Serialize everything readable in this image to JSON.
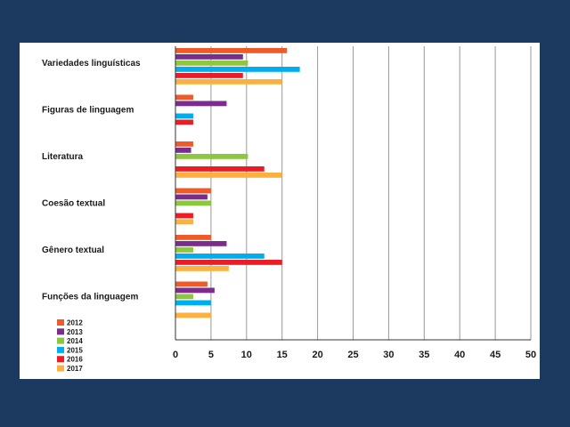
{
  "chart_data": {
    "type": "bar",
    "orientation": "horizontal",
    "categories": [
      "Variedades linguísticas",
      "Figuras de linguagem",
      "Literatura",
      "Coesão textual",
      "Gênero textual",
      "Funções da linguagem"
    ],
    "series": [
      {
        "name": "2012",
        "color": "#f05a28",
        "values": [
          15.7,
          2.5,
          2.5,
          5,
          5,
          4.5
        ]
      },
      {
        "name": "2013",
        "color": "#7b2d8e",
        "values": [
          9.5,
          7.2,
          2.2,
          4.5,
          7.2,
          5.5
        ]
      },
      {
        "name": "2014",
        "color": "#8dc63f",
        "values": [
          10.2,
          0,
          10.2,
          5,
          2.5,
          2.5
        ]
      },
      {
        "name": "2015",
        "color": "#00aeef",
        "values": [
          17.5,
          2.5,
          0,
          0,
          12.5,
          5
        ]
      },
      {
        "name": "2016",
        "color": "#ed1c24",
        "values": [
          9.5,
          2.5,
          12.5,
          2.5,
          15,
          0
        ]
      },
      {
        "name": "2017",
        "color": "#fbb040",
        "values": [
          15,
          0,
          15,
          2.5,
          7.5,
          5
        ]
      }
    ],
    "xlim": [
      0,
      50
    ],
    "xticks": [
      "0",
      "5",
      "10",
      "15",
      "20",
      "25",
      "30",
      "35",
      "40",
      "45",
      "50"
    ],
    "grid": "vertical",
    "legend_position": "bottom-left"
  }
}
